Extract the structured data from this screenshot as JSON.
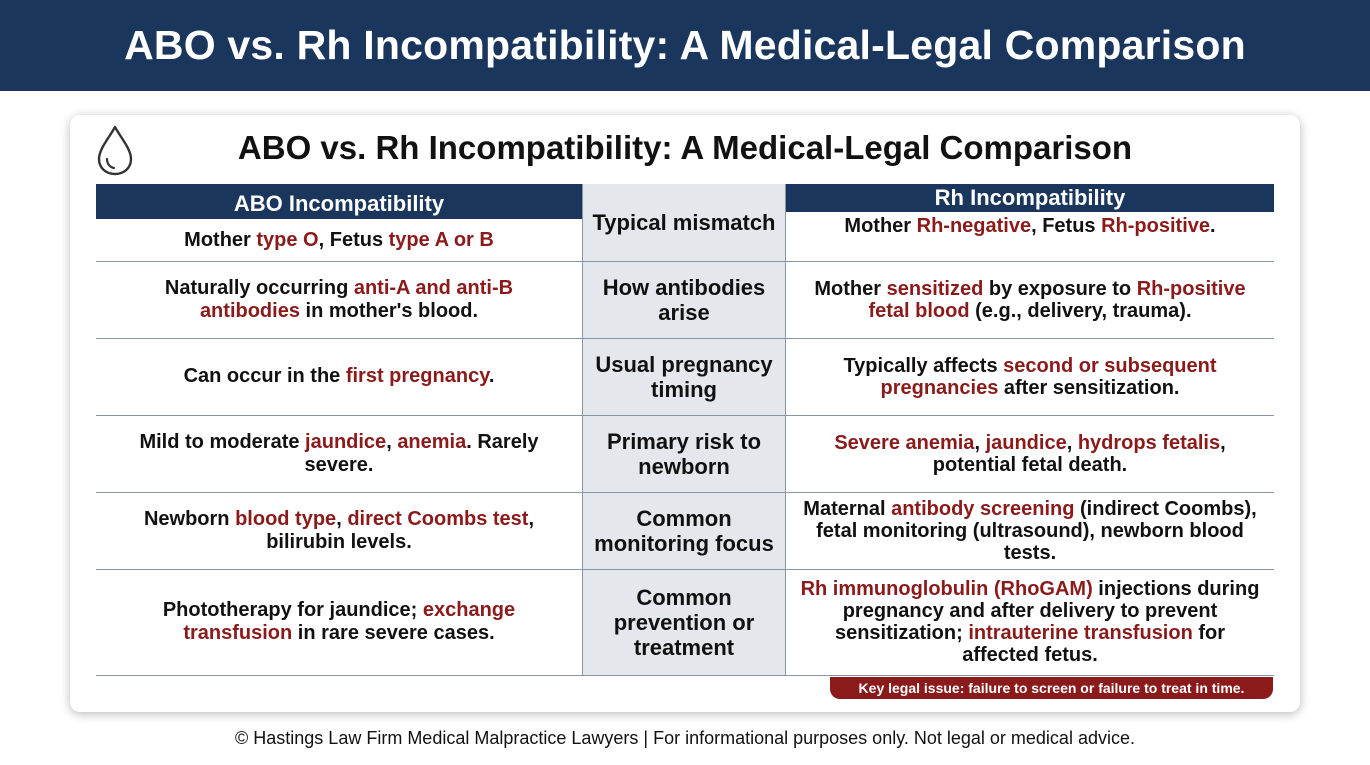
{
  "banner": {
    "title": "ABO vs. Rh Incompatibility: A Medical-Legal Comparison"
  },
  "card": {
    "icon": "blood-drop-icon",
    "title": "ABO vs. Rh Incompatibility: A Medical-Legal Comparison"
  },
  "table": {
    "headers": {
      "left": "ABO Incompatibility",
      "right": "Rh Incompatibility"
    },
    "rows": [
      {
        "category": "Typical mismatch",
        "abo": [
          "Mother ",
          "type O",
          ", Fetus ",
          "type A or B"
        ],
        "rh": [
          "Mother ",
          "Rh-negative",
          ", Fetus ",
          "Rh-positive",
          "."
        ]
      },
      {
        "category": "How antibodies arise",
        "abo": [
          "Naturally occurring ",
          "anti-A and anti-B antibodies",
          " in mother's blood."
        ],
        "rh": [
          "Mother ",
          "sensitized",
          " by exposure to ",
          "Rh-positive fetal blood",
          " (e.g., delivery, trauma)."
        ]
      },
      {
        "category": "Usual pregnancy timing",
        "abo": [
          "Can occur in the ",
          "first pregnancy",
          "."
        ],
        "rh": [
          "Typically affects ",
          "second or subsequent pregnancies",
          " after sensitization."
        ]
      },
      {
        "category": "Primary risk to newborn",
        "abo": [
          "Mild to moderate ",
          "jaundice",
          ", ",
          "anemia",
          ". Rarely severe."
        ],
        "rh": [
          "",
          "Severe anemia",
          ", ",
          "jaundice",
          ", ",
          "hydrops fetalis",
          ", potential fetal death."
        ]
      },
      {
        "category": "Common monitoring focus",
        "abo": [
          "Newborn ",
          "blood type",
          ", ",
          "direct Coombs test",
          ", bilirubin levels."
        ],
        "rh": [
          "Maternal ",
          "antibody screening",
          " (indirect Coombs), fetal monitoring (ultrasound), newborn blood tests."
        ]
      },
      {
        "category": "Common prevention or treatment",
        "abo": [
          "Phototherapy for jaundice; ",
          "exchange transfusion",
          " in rare severe cases."
        ],
        "rh": [
          "",
          "Rh immunoglobulin (RhoGAM)",
          " injections during pregnancy and after delivery to prevent sensitization; ",
          "intrauterine transfusion",
          " for affected fetus."
        ]
      }
    ]
  },
  "legal_note": "Key legal issue: failure to screen or failure to treat in time.",
  "footer": "© Hastings Law Firm Medical Malpractice Lawyers | For informational purposes only. Not legal or medical advice.",
  "colors": {
    "navy": "#1a365d",
    "highlight": "#8b1a1a",
    "middle_column": "#e4e8ed",
    "rule": "#8a95a3"
  }
}
